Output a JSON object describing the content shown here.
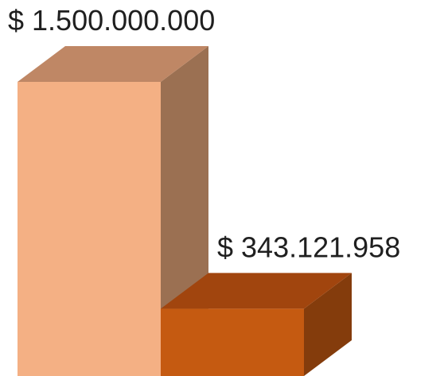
{
  "chart_data": {
    "type": "bar",
    "style": "3d",
    "categories": [
      "",
      ""
    ],
    "values": [
      1500000000,
      343121958
    ],
    "data_labels": [
      "$ 1.500.000.000",
      "$ 343.121.958"
    ],
    "ylim": [
      0,
      1500000000
    ],
    "colors": [
      {
        "front": "#F4B084",
        "top": "#BF8765",
        "side": "#9B7052"
      },
      {
        "front": "#C55A11",
        "top": "#A1450E",
        "side": "#843C0C"
      }
    ],
    "grid": false,
    "legend": "none"
  }
}
